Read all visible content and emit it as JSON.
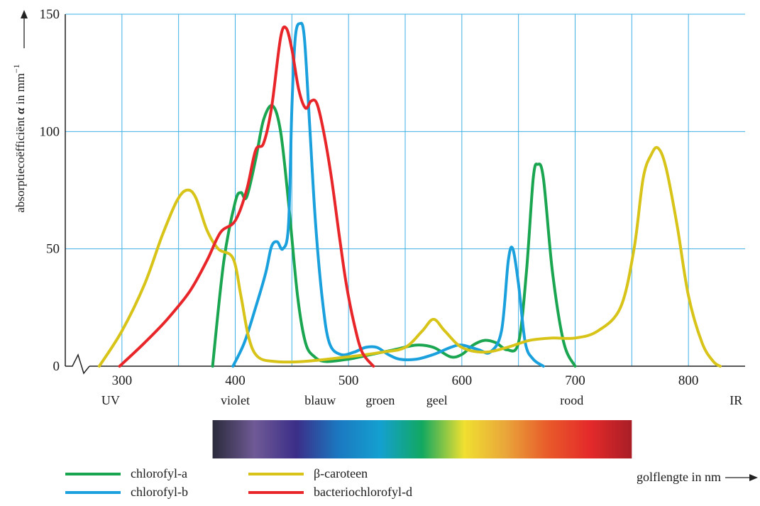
{
  "chart_data": {
    "type": "line",
    "title": "",
    "xlabel": "golflengte in nm",
    "ylabel": "absorptiecoëfficiënt α in mm⁻¹",
    "ylabel_parts": {
      "text": "absorptiecoëfficiënt ",
      "symbol": "α",
      "rest": " in mm",
      "exp": "−1"
    },
    "xlim": [
      250,
      850
    ],
    "ylim": [
      0,
      150
    ],
    "x_ticks": [
      300,
      400,
      500,
      600,
      700,
      800
    ],
    "y_ticks": [
      0,
      50,
      100,
      150
    ],
    "grid": true,
    "legend_position": "bottom",
    "spectrum_bands": [
      {
        "label": "UV",
        "x": 290
      },
      {
        "label": "violet",
        "x": 400
      },
      {
        "label": "blauw",
        "x": 475
      },
      {
        "label": "groen",
        "x": 528
      },
      {
        "label": "geel",
        "x": 578
      },
      {
        "label": "rood",
        "x": 697
      },
      {
        "label": "IR",
        "x": 842
      }
    ],
    "spectrum_bar": {
      "x_range": [
        380,
        750
      ],
      "colors": [
        "#2b2b3b",
        "#6f5a96",
        "#3b2e88",
        "#1b78c0",
        "#14a0d0",
        "#12a860",
        "#f0e030",
        "#e9a53a",
        "#e85a2a",
        "#e42a2a",
        "#a81e26"
      ]
    },
    "series": [
      {
        "name": "chlorofyl-a",
        "color": "#1aa550",
        "points": [
          [
            380,
            0
          ],
          [
            390,
            45
          ],
          [
            400,
            70
          ],
          [
            405,
            74
          ],
          [
            410,
            72
          ],
          [
            418,
            88
          ],
          [
            425,
            105
          ],
          [
            433,
            111
          ],
          [
            440,
            100
          ],
          [
            447,
            70
          ],
          [
            455,
            30
          ],
          [
            462,
            10
          ],
          [
            470,
            4
          ],
          [
            480,
            2
          ],
          [
            500,
            3
          ],
          [
            520,
            5
          ],
          [
            540,
            7
          ],
          [
            560,
            9
          ],
          [
            575,
            8
          ],
          [
            590,
            4
          ],
          [
            600,
            5
          ],
          [
            610,
            9
          ],
          [
            620,
            11
          ],
          [
            630,
            10
          ],
          [
            640,
            7
          ],
          [
            650,
            10
          ],
          [
            657,
            40
          ],
          [
            663,
            80
          ],
          [
            667,
            86
          ],
          [
            672,
            80
          ],
          [
            680,
            40
          ],
          [
            690,
            10
          ],
          [
            700,
            0
          ]
        ]
      },
      {
        "name": "chlorofyl-b",
        "color": "#1aa0dc",
        "points": [
          [
            398,
            0
          ],
          [
            408,
            10
          ],
          [
            418,
            25
          ],
          [
            427,
            40
          ],
          [
            432,
            51
          ],
          [
            437,
            53
          ],
          [
            442,
            50
          ],
          [
            447,
            60
          ],
          [
            450,
            110
          ],
          [
            453,
            140
          ],
          [
            457,
            146
          ],
          [
            461,
            140
          ],
          [
            466,
            100
          ],
          [
            471,
            60
          ],
          [
            477,
            28
          ],
          [
            483,
            10
          ],
          [
            493,
            5
          ],
          [
            505,
            6
          ],
          [
            515,
            8
          ],
          [
            525,
            8
          ],
          [
            535,
            5
          ],
          [
            545,
            3
          ],
          [
            560,
            3
          ],
          [
            575,
            5
          ],
          [
            590,
            8
          ],
          [
            600,
            9
          ],
          [
            615,
            7
          ],
          [
            625,
            6
          ],
          [
            635,
            15
          ],
          [
            641,
            45
          ],
          [
            645,
            50
          ],
          [
            650,
            35
          ],
          [
            656,
            10
          ],
          [
            663,
            3
          ],
          [
            672,
            0
          ]
        ]
      },
      {
        "name": "β-caroteen",
        "color": "#d8c418",
        "points": [
          [
            280,
            0
          ],
          [
            300,
            15
          ],
          [
            320,
            35
          ],
          [
            335,
            55
          ],
          [
            348,
            70
          ],
          [
            357,
            75
          ],
          [
            365,
            72
          ],
          [
            375,
            58
          ],
          [
            385,
            50
          ],
          [
            398,
            46
          ],
          [
            405,
            30
          ],
          [
            412,
            12
          ],
          [
            420,
            4
          ],
          [
            435,
            2
          ],
          [
            460,
            2
          ],
          [
            500,
            4
          ],
          [
            530,
            6
          ],
          [
            550,
            8
          ],
          [
            565,
            15
          ],
          [
            575,
            20
          ],
          [
            585,
            15
          ],
          [
            600,
            8
          ],
          [
            620,
            6
          ],
          [
            640,
            8
          ],
          [
            660,
            11
          ],
          [
            680,
            12
          ],
          [
            700,
            12
          ],
          [
            720,
            15
          ],
          [
            740,
            25
          ],
          [
            752,
            50
          ],
          [
            760,
            80
          ],
          [
            767,
            90
          ],
          [
            773,
            93
          ],
          [
            780,
            85
          ],
          [
            790,
            60
          ],
          [
            800,
            30
          ],
          [
            812,
            10
          ],
          [
            822,
            2
          ],
          [
            828,
            0
          ]
        ]
      },
      {
        "name": "bacteriochlorofyl-d",
        "color": "#e8262a",
        "points": [
          [
            298,
            0
          ],
          [
            320,
            10
          ],
          [
            340,
            20
          ],
          [
            360,
            32
          ],
          [
            375,
            45
          ],
          [
            387,
            57
          ],
          [
            400,
            62
          ],
          [
            410,
            75
          ],
          [
            418,
            92
          ],
          [
            425,
            95
          ],
          [
            432,
            110
          ],
          [
            440,
            140
          ],
          [
            445,
            144
          ],
          [
            450,
            135
          ],
          [
            456,
            118
          ],
          [
            462,
            110
          ],
          [
            467,
            113
          ],
          [
            472,
            112
          ],
          [
            478,
            100
          ],
          [
            485,
            80
          ],
          [
            492,
            55
          ],
          [
            498,
            35
          ],
          [
            505,
            18
          ],
          [
            512,
            6
          ],
          [
            522,
            0
          ]
        ]
      }
    ]
  }
}
